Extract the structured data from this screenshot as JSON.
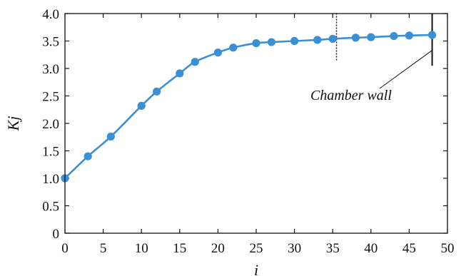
{
  "chart_data": {
    "type": "line",
    "title": "",
    "xlabel": "i",
    "ylabel": "Kj",
    "xlim": [
      0,
      50
    ],
    "ylim": [
      0,
      4.0
    ],
    "x_ticks": [
      0,
      5,
      10,
      15,
      20,
      25,
      30,
      35,
      40,
      45,
      50
    ],
    "x_tick_labels": [
      "0",
      "5",
      "10",
      "15",
      "20",
      "25",
      "30",
      "35",
      "40",
      "45",
      "50"
    ],
    "y_ticks": [
      0,
      0.5,
      1.0,
      1.5,
      2.0,
      2.5,
      3.0,
      3.5,
      4.0
    ],
    "y_tick_labels": [
      "0",
      "0.5",
      "1.0",
      "1.5",
      "2.0",
      "2.5",
      "3.0",
      "3.5",
      "4.0"
    ],
    "grid": false,
    "series": [
      {
        "color": "#3b8fd4",
        "marker": "circle",
        "points": [
          {
            "x": 0,
            "y": 1.0
          },
          {
            "x": 3,
            "y": 1.4
          },
          {
            "x": 6,
            "y": 1.76
          },
          {
            "x": 10,
            "y": 2.32
          },
          {
            "x": 12,
            "y": 2.58
          },
          {
            "x": 15,
            "y": 2.91
          },
          {
            "x": 17,
            "y": 3.12
          },
          {
            "x": 20,
            "y": 3.29
          },
          {
            "x": 22,
            "y": 3.38
          },
          {
            "x": 25,
            "y": 3.46
          },
          {
            "x": 27,
            "y": 3.48
          },
          {
            "x": 30,
            "y": 3.5
          },
          {
            "x": 33,
            "y": 3.52
          },
          {
            "x": 35,
            "y": 3.54
          },
          {
            "x": 38,
            "y": 3.56
          },
          {
            "x": 40,
            "y": 3.57
          },
          {
            "x": 43,
            "y": 3.59
          },
          {
            "x": 45,
            "y": 3.6
          },
          {
            "x": 48,
            "y": 3.61
          }
        ]
      }
    ],
    "reference_lines": [
      {
        "x": 35.5,
        "y_from": 3.15,
        "y_to": 4.0,
        "style": "dotted",
        "color": "#111111"
      },
      {
        "x": 48,
        "y_from": 3.05,
        "y_to": 4.0,
        "style": "solid",
        "color": "#111111"
      }
    ],
    "annotations": [
      {
        "text": "Chamber wall",
        "points_to_x": 48,
        "points_to_y": 3.33
      }
    ]
  }
}
